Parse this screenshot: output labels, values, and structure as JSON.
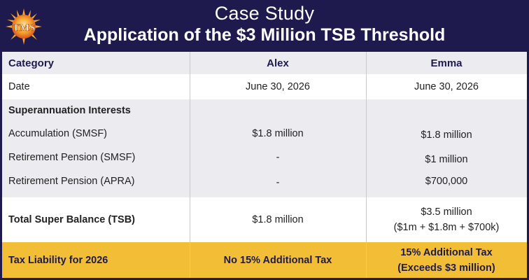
{
  "header": {
    "logo_text": "TMS",
    "title": "Case Study",
    "subtitle": "Application of the $3 Million TSB Threshold"
  },
  "table": {
    "columns": [
      "Category",
      "Alex",
      "Emma"
    ],
    "date": {
      "label": "Date",
      "alex": "June 30, 2026",
      "emma": "June 30, 2026"
    },
    "section_heading": "Superannuation Interests",
    "accumulation": {
      "label": "Accumulation (SMSF)",
      "alex": "$1.8 million",
      "emma": "$1.8 million"
    },
    "retirement_smsf": {
      "label": "Retirement Pension (SMSF)",
      "alex": "-",
      "emma": "$1 million"
    },
    "retirement_apra": {
      "label": "Retirement Pension (APRA)",
      "alex": "-",
      "emma": "$700,000"
    },
    "tsb": {
      "label": "Total Super Balance (TSB)",
      "alex": "$1.8 million",
      "emma_line1": "$3.5 million",
      "emma_line2": "($1m + $1.8m + $700k)"
    },
    "tax": {
      "label": "Tax Liability for 2026",
      "alex": "No 15% Additional Tax",
      "emma_line1": "15% Additional Tax",
      "emma_line2": "(Exceeds $3 million)"
    }
  },
  "colors": {
    "navy": "#1f1a4d",
    "gray_row": "#ebebf0",
    "gold_row": "#f1be36",
    "logo_orange": "#e8741e"
  },
  "icons": {
    "logo": "sun-logo-icon"
  }
}
